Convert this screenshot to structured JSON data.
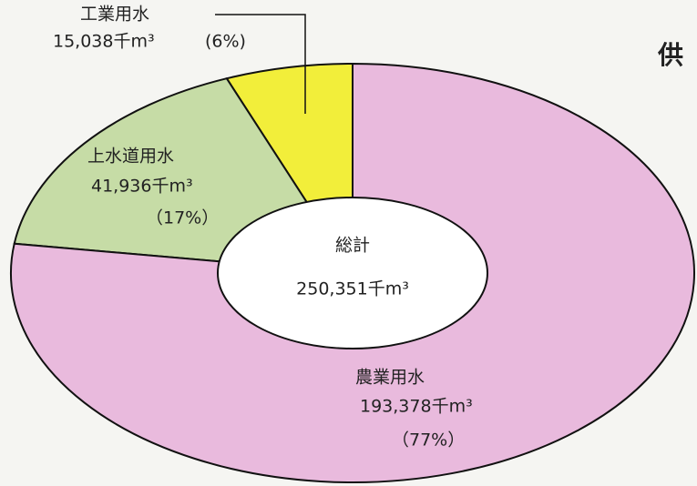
{
  "chart_data": {
    "type": "pie",
    "title": "供",
    "categories": [
      "工業用水",
      "上水道用水",
      "農業用水"
    ],
    "values": [
      15038,
      41936,
      193378
    ],
    "value_labels": [
      "15,038千m³",
      "41,936千m³",
      "193,378千m³"
    ],
    "percents": [
      6,
      17,
      77
    ],
    "percent_labels": [
      "(6%)",
      "（17%）",
      "（77%）"
    ],
    "colors": [
      "#f2ee3a",
      "#c6dca6",
      "#e9badd"
    ],
    "center_title": "総計",
    "total": 250351,
    "total_label": "250,351千m³"
  }
}
